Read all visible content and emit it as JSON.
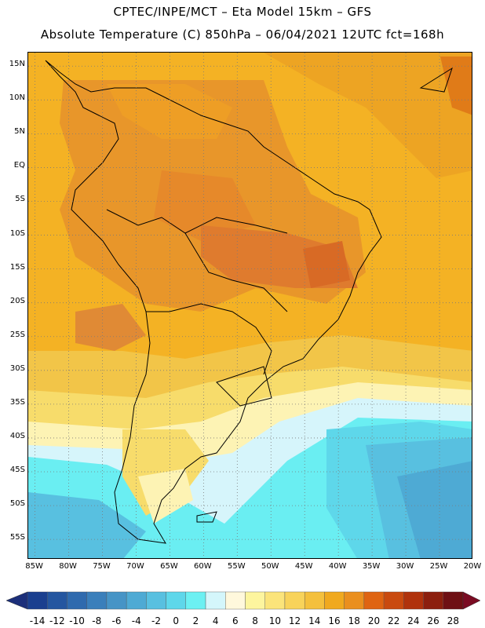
{
  "title": {
    "line1": "CPTEC/INPE/MCT –  Eta Model 15km – GFS",
    "line2": "Absolute Temperature (C) 850hPa – 06/04/2021 12UTC fct=168h"
  },
  "map": {
    "lon_range": [
      -86,
      -20
    ],
    "lat_range": [
      -58,
      17
    ],
    "lat_labels": [
      "15N",
      "10N",
      "5N",
      "EQ",
      "5S",
      "10S",
      "15S",
      "20S",
      "25S",
      "30S",
      "35S",
      "40S",
      "45S",
      "50S",
      "55S"
    ],
    "lat_values": [
      15,
      10,
      5,
      0,
      -5,
      -10,
      -15,
      -20,
      -25,
      -30,
      -35,
      -40,
      -45,
      -50,
      -55
    ],
    "lon_labels": [
      "85W",
      "80W",
      "75W",
      "70W",
      "65W",
      "60W",
      "55W",
      "50W",
      "45W",
      "40W",
      "35W",
      "30W",
      "25W",
      "20W"
    ],
    "lon_values": [
      -85,
      -80,
      -75,
      -70,
      -65,
      -60,
      -55,
      -50,
      -45,
      -40,
      -35,
      -30,
      -25,
      -20
    ]
  },
  "colorbar": {
    "labels": [
      "-14",
      "-12",
      "-10",
      "-8",
      "-6",
      "-4",
      "-2",
      "0",
      "2",
      "4",
      "6",
      "8",
      "10",
      "12",
      "14",
      "16",
      "18",
      "20",
      "22",
      "24",
      "26",
      "28"
    ],
    "colors": [
      "#1a3f8f",
      "#2456a0",
      "#2f6aae",
      "#3a7fbb",
      "#4694c6",
      "#4eaad4",
      "#58c0e0",
      "#5ed7ea",
      "#6cf0f2",
      "#d4f6fb",
      "#fff8dc",
      "#fdf59e",
      "#fbe47a",
      "#f8d35a",
      "#f4c03c",
      "#f0a91e",
      "#ea8f1e",
      "#df6412",
      "#c94a0f",
      "#b0320c",
      "#8c1f0e",
      "#6e1014"
    ],
    "under_color": "#1c2f7a",
    "over_color": "#7a0b22"
  }
}
